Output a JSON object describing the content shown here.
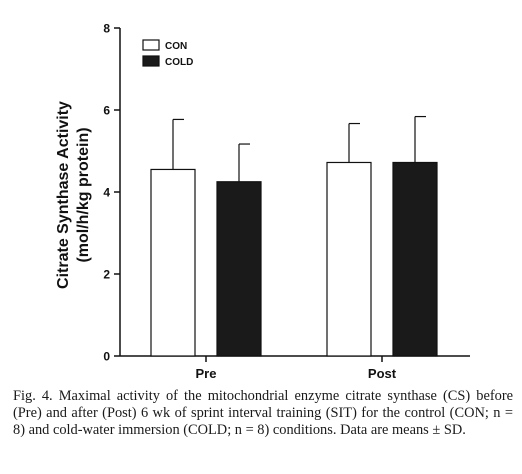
{
  "chart_data": {
    "type": "bar",
    "categories": [
      "Pre",
      "Post"
    ],
    "series": [
      {
        "name": "CON",
        "values": [
          4.55,
          4.72
        ],
        "sd": [
          1.22,
          0.95
        ],
        "fill": "#ffffff"
      },
      {
        "name": "COLD",
        "values": [
          4.25,
          4.72
        ],
        "sd": [
          0.92,
          1.12
        ],
        "fill": "#1a1a1a"
      }
    ],
    "ylabel_line1": "Citrate Synthase Activity",
    "ylabel_line2": "(mol/h/kg protein)",
    "xlabel": "",
    "ylim": [
      0,
      8
    ],
    "yticks": [
      0,
      2,
      4,
      6,
      8
    ],
    "legend_position": "top-left",
    "grid": false
  },
  "caption": {
    "line1": "Fig. 4. Maximal activity of the mitochondrial enzyme citrate synthase (CS)",
    "line2": "before (Pre) and after (Post) 6 wk of sprint interval training (SIT) for the",
    "line3": "control (CON; n = 8) and cold-water immersion (COLD; n = 8) conditions.",
    "line4": "Data are means ± SD."
  }
}
